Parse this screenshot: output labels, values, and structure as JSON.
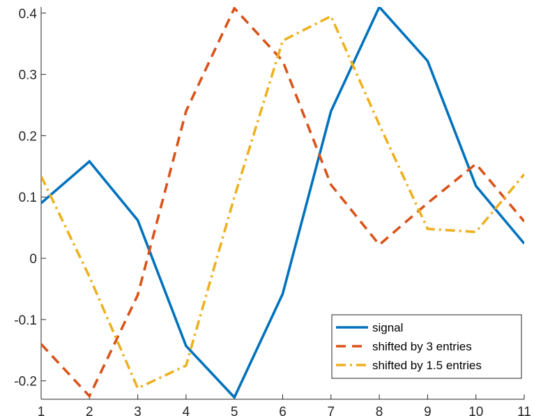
{
  "chart_data": {
    "type": "line",
    "x": [
      1,
      2,
      3,
      4,
      5,
      6,
      7,
      8,
      9,
      10,
      11
    ],
    "xlim": [
      1,
      11
    ],
    "ylim": [
      -0.23,
      0.41
    ],
    "xticks": [
      1,
      2,
      3,
      4,
      5,
      6,
      7,
      8,
      9,
      10,
      11
    ],
    "yticks": [
      -0.2,
      -0.1,
      0,
      0.1,
      0.2,
      0.3,
      0.4
    ],
    "ytick_labels": [
      "-0.2",
      "-0.1",
      "0",
      "0.1",
      "0.2",
      "0.3",
      "0.4"
    ],
    "grid": false,
    "legend_position": "bottom-right",
    "series": [
      {
        "name": "signal",
        "color": "#0072BD",
        "style": "solid",
        "values": [
          0.09,
          0.158,
          0.062,
          -0.143,
          -0.227,
          -0.058,
          0.24,
          0.41,
          0.322,
          0.118,
          0.024
        ]
      },
      {
        "name": "shifted by 3 entries",
        "color": "#D95319",
        "style": "dashed",
        "values": [
          -0.14,
          -0.225,
          -0.06,
          0.24,
          0.408,
          0.322,
          0.12,
          0.022,
          0.09,
          0.154,
          0.06
        ]
      },
      {
        "name": "shifted by 1.5 entries",
        "color": "#EDB120",
        "style": "dashdot",
        "values": [
          0.134,
          -0.03,
          -0.212,
          -0.175,
          0.1,
          0.355,
          0.395,
          0.218,
          0.048,
          0.043,
          0.137
        ]
      }
    ]
  }
}
